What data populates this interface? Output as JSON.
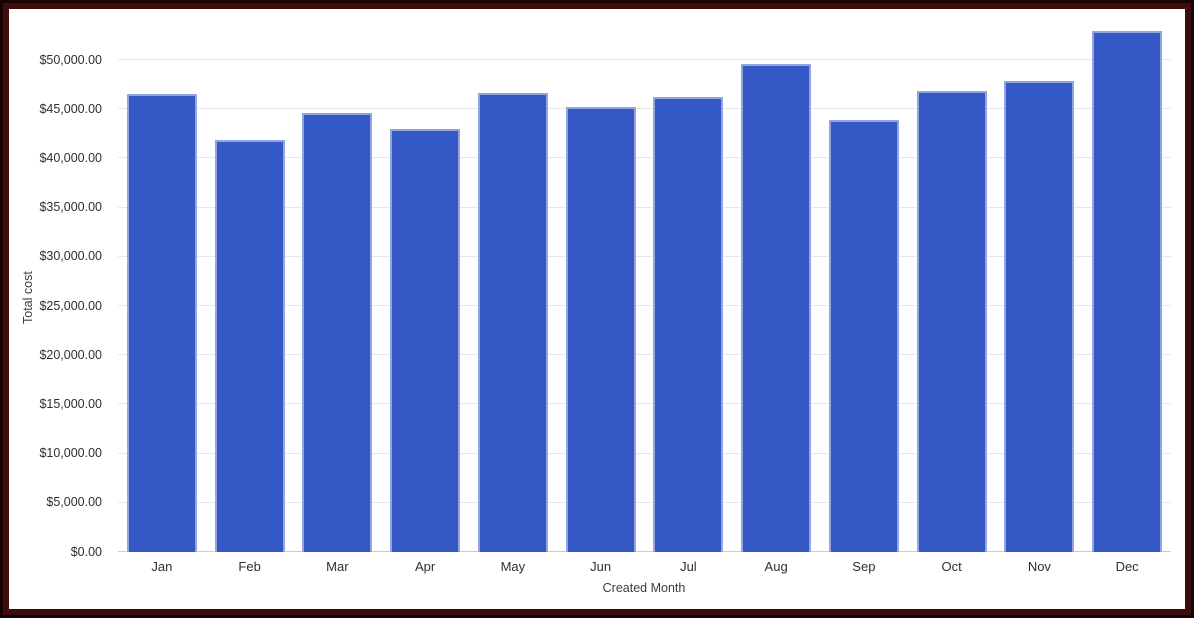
{
  "chart_data": {
    "type": "bar",
    "title": "",
    "categories": [
      "Jan",
      "Feb",
      "Mar",
      "Apr",
      "May",
      "Jun",
      "Jul",
      "Aug",
      "Sep",
      "Oct",
      "Nov",
      "Dec"
    ],
    "values": [
      46500,
      41900,
      44600,
      43000,
      46600,
      45200,
      46200,
      49600,
      43900,
      46900,
      47900,
      52900
    ],
    "xlabel": "Created Month",
    "ylabel": "Total cost",
    "ylim": [
      0,
      50000
    ],
    "y_tick_step": 5000,
    "y_tick_labels": [
      "$0.00",
      "$5,000.00",
      "$10,000.00",
      "$15,000.00",
      "$20,000.00",
      "$25,000.00",
      "$30,000.00",
      "$35,000.00",
      "$40,000.00",
      "$45,000.00",
      "$50,000.00"
    ],
    "grid": true,
    "legend": "none"
  },
  "colors": {
    "bar_fill": "#3459c4",
    "bar_stroke": "#92a5dc",
    "gridline": "#e8e8e8",
    "baseline": "#cccccc",
    "frame_outer": "#160404",
    "frame_inner": "#3d0c0c",
    "background": "#ffffff"
  }
}
